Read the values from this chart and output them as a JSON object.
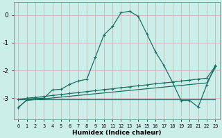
{
  "xlabel": "Humidex (Indice chaleur)",
  "bg_color": "#cceee8",
  "line_color": "#1a6e62",
  "grid_color": "#c8b8b8",
  "x_values": [
    0,
    1,
    2,
    3,
    4,
    5,
    6,
    7,
    8,
    9,
    10,
    11,
    12,
    13,
    14,
    15,
    16,
    17,
    18,
    19,
    20,
    21,
    22,
    23
  ],
  "line1": [
    -3.35,
    -3.05,
    -3.0,
    -3.0,
    -2.7,
    -2.68,
    -2.5,
    -2.38,
    -2.32,
    -1.52,
    -0.72,
    -0.42,
    0.08,
    0.13,
    -0.05,
    -0.68,
    -1.32,
    -1.82,
    -2.42,
    -3.08,
    -3.08,
    -3.32,
    -2.52,
    -1.82
  ],
  "line2": [
    -3.05,
    -3.0,
    -2.97,
    -2.94,
    -2.9,
    -2.87,
    -2.83,
    -2.8,
    -2.76,
    -2.73,
    -2.69,
    -2.66,
    -2.62,
    -2.59,
    -2.55,
    -2.52,
    -2.48,
    -2.45,
    -2.42,
    -2.38,
    -2.35,
    -2.31,
    -2.28,
    -1.85
  ],
  "line3": [
    -3.05,
    -3.05,
    -3.05,
    -3.05,
    -3.05,
    -3.05,
    -3.05,
    -3.05,
    -3.05,
    -3.05,
    -3.05,
    -3.05,
    -3.05,
    -3.05,
    -3.05,
    -3.05,
    -3.05,
    -3.05,
    -3.05,
    -3.05,
    -3.05,
    -3.05,
    -3.05,
    -3.05
  ],
  "line4": [
    -3.32,
    -3.08,
    -3.05,
    -3.02,
    -2.99,
    -2.96,
    -2.93,
    -2.9,
    -2.87,
    -2.84,
    -2.81,
    -2.78,
    -2.75,
    -2.72,
    -2.69,
    -2.66,
    -2.63,
    -2.6,
    -2.57,
    -2.54,
    -2.51,
    -2.48,
    -2.45,
    -1.9
  ],
  "xlim": [
    -0.5,
    23.5
  ],
  "ylim": [
    -3.75,
    0.45
  ],
  "yticks": [
    0,
    -1,
    -2,
    -3
  ],
  "xticks": [
    0,
    1,
    2,
    3,
    4,
    5,
    6,
    7,
    8,
    9,
    10,
    11,
    12,
    13,
    14,
    15,
    16,
    17,
    18,
    19,
    20,
    21,
    22,
    23
  ]
}
